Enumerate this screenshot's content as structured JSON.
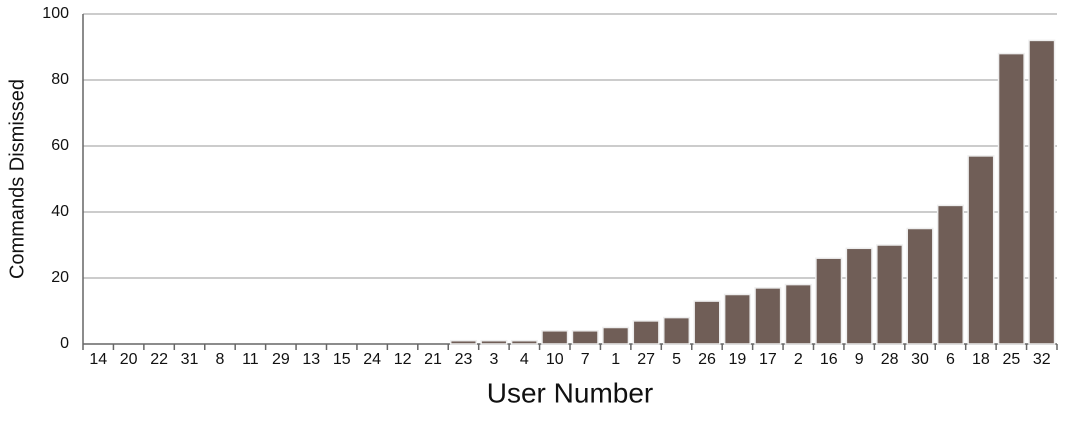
{
  "chart_data": {
    "type": "bar",
    "categories": [
      "14",
      "20",
      "22",
      "31",
      "8",
      "11",
      "29",
      "13",
      "15",
      "24",
      "12",
      "21",
      "23",
      "3",
      "4",
      "10",
      "7",
      "1",
      "27",
      "5",
      "26",
      "19",
      "17",
      "2",
      "16",
      "9",
      "28",
      "30",
      "6",
      "18",
      "25",
      "32"
    ],
    "values": [
      0,
      0,
      0,
      0,
      0,
      0,
      0,
      0,
      0,
      0,
      0,
      0,
      1,
      1,
      1,
      4,
      4,
      5,
      7,
      8,
      13,
      15,
      17,
      18,
      26,
      29,
      30,
      35,
      42,
      57,
      88,
      92
    ],
    "color": "#705e57",
    "x_label": "User Number",
    "y_label": "Commands Dismissed",
    "ylim": [
      0,
      100
    ],
    "yticks": [
      0,
      20,
      40,
      60,
      80,
      100
    ],
    "grid": true
  }
}
